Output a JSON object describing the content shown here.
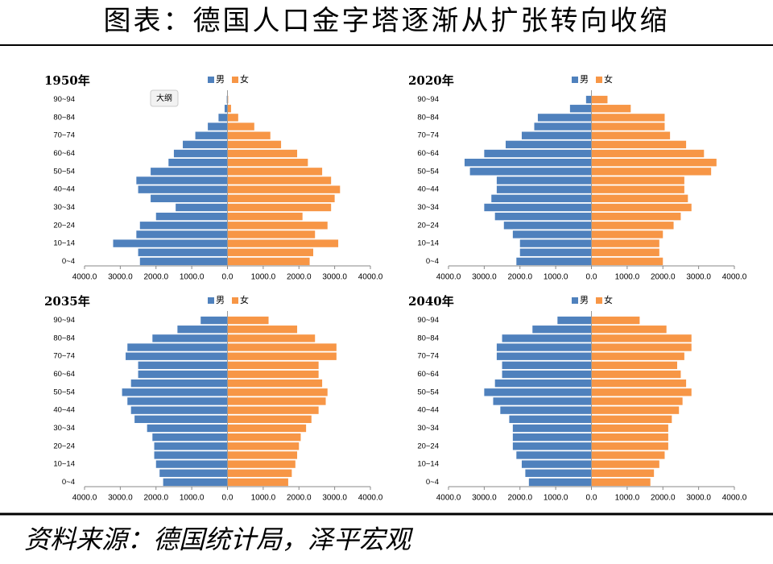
{
  "title": "图表：德国人口金字塔逐渐从扩张转向收缩",
  "source": "资料来源：德国统计局，泽平宏观",
  "overlay_label": "大纲",
  "chart_data": [
    {
      "type": "bar",
      "title": "1950年",
      "legend": "top",
      "categories": [
        "0~4",
        null,
        "10~14",
        null,
        "20~24",
        null,
        "30~34",
        null,
        "40~44",
        null,
        "50~54",
        null,
        "60~64",
        null,
        "70~74",
        null,
        "80~84",
        null,
        "90~94"
      ],
      "series": [
        {
          "name": "男",
          "color": "#4f81bd",
          "values": [
            -2450,
            -2500,
            -3200,
            -2550,
            -2450,
            -2000,
            -1450,
            -2150,
            -2500,
            -2550,
            -2150,
            -1650,
            -1500,
            -1250,
            -900,
            -550,
            -250,
            -80,
            -20
          ]
        },
        {
          "name": "女",
          "color": "#f79646",
          "values": [
            2300,
            2400,
            3100,
            2450,
            2800,
            2100,
            2900,
            3000,
            3150,
            2900,
            2650,
            2250,
            1950,
            1500,
            1200,
            750,
            300,
            100,
            20
          ]
        }
      ],
      "xlim": [
        -4000,
        4000
      ],
      "xticks": [
        {
          "value": -4000,
          "label": "4000.0"
        },
        {
          "value": -3000,
          "label": "3000.0"
        },
        {
          "value": -2000,
          "label": "2000.0"
        },
        {
          "value": -1000,
          "label": "1000.0"
        },
        {
          "value": 0,
          "label": "0.0"
        },
        {
          "value": 1000,
          "label": "1000.0"
        },
        {
          "value": 2000,
          "label": "2000.0"
        },
        {
          "value": 3000,
          "label": "3000.0"
        },
        {
          "value": 4000,
          "label": "4000.0"
        }
      ]
    },
    {
      "type": "bar",
      "title": "2020年",
      "legend": "top",
      "categories": [
        "0~4",
        null,
        "10~14",
        null,
        "20~24",
        null,
        "30~34",
        null,
        "40~44",
        null,
        "50~54",
        null,
        "60~64",
        null,
        "70~74",
        null,
        "80~84",
        null,
        "90~94"
      ],
      "series": [
        {
          "name": "男",
          "color": "#4f81bd",
          "values": [
            -2100,
            -2000,
            -2000,
            -2200,
            -2450,
            -2700,
            -3000,
            -2800,
            -2650,
            -2650,
            -3400,
            -3550,
            -3000,
            -2400,
            -1950,
            -1600,
            -1500,
            -600,
            -150
          ]
        },
        {
          "name": "女",
          "color": "#f79646",
          "values": [
            2000,
            1900,
            1900,
            2000,
            2300,
            2500,
            2800,
            2700,
            2600,
            2600,
            3350,
            3500,
            3150,
            2650,
            2200,
            2050,
            2050,
            1100,
            450
          ]
        }
      ],
      "xlim": [
        -4000,
        4000
      ],
      "xticks": [
        {
          "value": -4000,
          "label": "4000.0"
        },
        {
          "value": -3000,
          "label": "3000.0"
        },
        {
          "value": -2000,
          "label": "2000.0"
        },
        {
          "value": -1000,
          "label": "1000.0"
        },
        {
          "value": 0,
          "label": "0.0"
        },
        {
          "value": 1000,
          "label": "1000.0"
        },
        {
          "value": 2000,
          "label": "2000.0"
        },
        {
          "value": 3000,
          "label": "3000.0"
        },
        {
          "value": 4000,
          "label": "4000.0"
        }
      ]
    },
    {
      "type": "bar",
      "title": "2035年",
      "legend": "top",
      "categories": [
        "0~4",
        null,
        "10~14",
        null,
        "20~24",
        null,
        "30~34",
        null,
        "40~44",
        null,
        "50~54",
        null,
        "60~64",
        null,
        "70~74",
        null,
        "80~84",
        null,
        "90~94"
      ],
      "series": [
        {
          "name": "男",
          "color": "#4f81bd",
          "values": [
            -1800,
            -1900,
            -2000,
            -2050,
            -2050,
            -2100,
            -2250,
            -2600,
            -2700,
            -2800,
            -2950,
            -2700,
            -2500,
            -2500,
            -2850,
            -2800,
            -2100,
            -1400,
            -750
          ]
        },
        {
          "name": "女",
          "color": "#f79646",
          "values": [
            1700,
            1800,
            1900,
            1950,
            2000,
            2050,
            2200,
            2350,
            2550,
            2750,
            2800,
            2650,
            2550,
            2550,
            3050,
            3050,
            2450,
            1950,
            1150
          ]
        }
      ],
      "xlim": [
        -4000,
        4000
      ],
      "xticks": [
        {
          "value": -4000,
          "label": "4000.0"
        },
        {
          "value": -3000,
          "label": "3000.0"
        },
        {
          "value": -2000,
          "label": "2000.0"
        },
        {
          "value": -1000,
          "label": "1000.0"
        },
        {
          "value": 0,
          "label": "0.0"
        },
        {
          "value": 1000,
          "label": "1000.0"
        },
        {
          "value": 2000,
          "label": "2000.0"
        },
        {
          "value": 3000,
          "label": "3000.0"
        },
        {
          "value": 4000,
          "label": "4000.0"
        }
      ]
    },
    {
      "type": "bar",
      "title": "2040年",
      "legend": "top",
      "categories": [
        "0~4",
        null,
        "10~14",
        null,
        "20~24",
        null,
        "30~34",
        null,
        "40~44",
        null,
        "50~54",
        null,
        "60~64",
        null,
        "70~74",
        null,
        "80~84",
        null,
        "90~94"
      ],
      "series": [
        {
          "name": "男",
          "color": "#4f81bd",
          "values": [
            -1750,
            -1850,
            -1950,
            -2100,
            -2200,
            -2200,
            -2200,
            -2300,
            -2550,
            -2750,
            -3000,
            -2700,
            -2500,
            -2500,
            -2650,
            -2650,
            -2500,
            -1650,
            -950
          ]
        },
        {
          "name": "女",
          "color": "#f79646",
          "values": [
            1650,
            1750,
            1900,
            2050,
            2150,
            2150,
            2150,
            2250,
            2450,
            2550,
            2800,
            2650,
            2500,
            2400,
            2600,
            2800,
            2800,
            2100,
            1350
          ]
        }
      ],
      "xlim": [
        -4000,
        4000
      ],
      "xticks": [
        {
          "value": -4000,
          "label": "4000.0"
        },
        {
          "value": -3000,
          "label": "3000.0"
        },
        {
          "value": -2000,
          "label": "2000.0"
        },
        {
          "value": -1000,
          "label": "1000.0"
        },
        {
          "value": 0,
          "label": "0.0"
        },
        {
          "value": 1000,
          "label": "1000.0"
        },
        {
          "value": 2000,
          "label": "2000.0"
        },
        {
          "value": 3000,
          "label": "3000.0"
        },
        {
          "value": 4000,
          "label": "4000.0"
        }
      ]
    }
  ]
}
